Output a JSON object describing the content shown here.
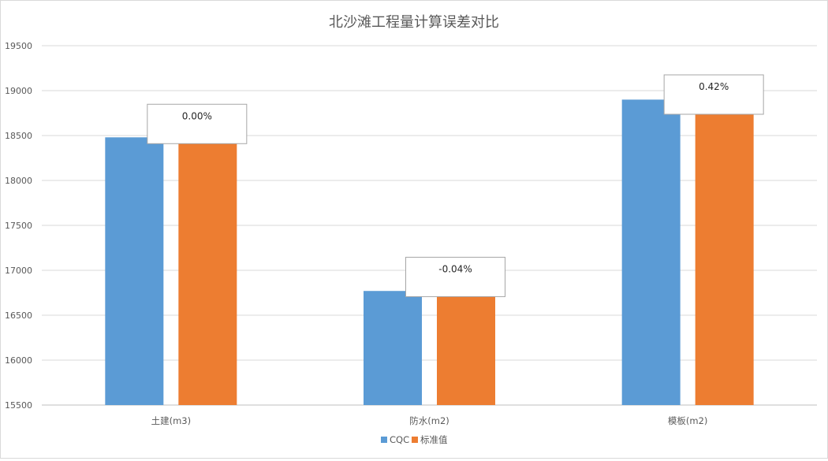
{
  "chart_data": {
    "type": "bar",
    "title": "北沙滩工程量计算误差对比",
    "xlabel": "",
    "ylabel": "",
    "categories": [
      "土建(m3)",
      "防水(m2)",
      "模板(m2)"
    ],
    "series": [
      {
        "name": "CQC",
        "values": [
          18480,
          16770,
          18900
        ],
        "color": "#5b9bd5"
      },
      {
        "name": "标准值",
        "values": [
          18480,
          16777,
          18822
        ],
        "color": "#ed7d31"
      }
    ],
    "annotations": [
      "0.00%",
      "-0.04%",
      "0.42%"
    ],
    "ylim": [
      15500,
      19500
    ],
    "yticks": [
      15500,
      16000,
      16500,
      17000,
      17500,
      18000,
      18500,
      19000,
      19500
    ],
    "grid": true,
    "legend_position": "bottom"
  }
}
